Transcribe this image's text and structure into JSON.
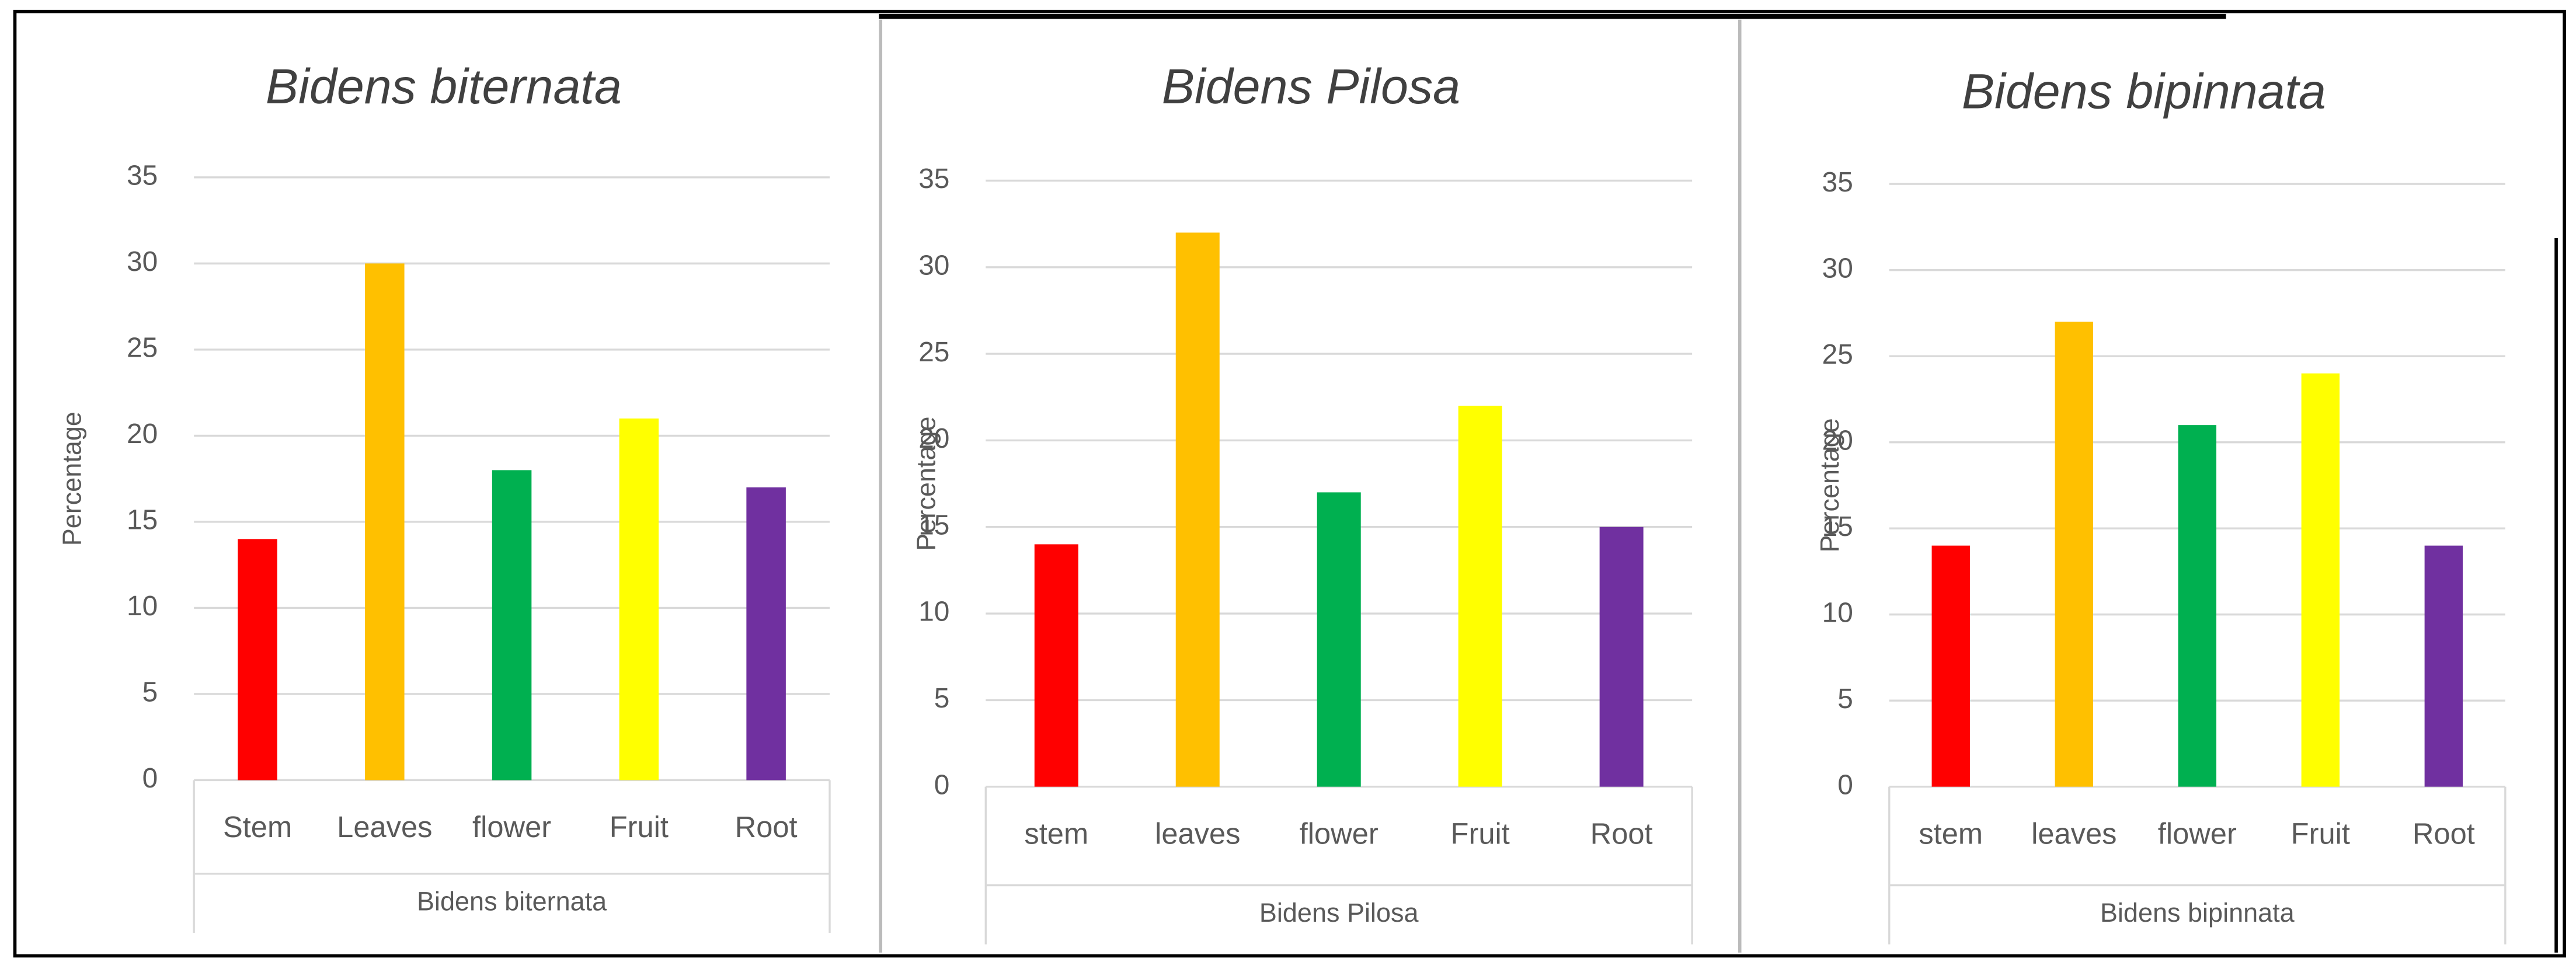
{
  "chart_data": [
    {
      "type": "bar",
      "title": "Bidens biternata",
      "xlabel": "Bidens biternata",
      "ylabel": "Percentage",
      "categories": [
        "Stem",
        "Leaves",
        "flower",
        "Fruit",
        "Root"
      ],
      "values": [
        14,
        30,
        18,
        21,
        17
      ],
      "colors": [
        "#ff0000",
        "#ffc000",
        "#00b050",
        "#ffff00",
        "#7030a0"
      ],
      "ylim": [
        0,
        35
      ],
      "yticks": [
        0,
        5,
        10,
        15,
        20,
        25,
        30,
        35
      ],
      "grid": true
    },
    {
      "type": "bar",
      "title": "Bidens Pilosa",
      "xlabel": "Bidens Pilosa",
      "ylabel": "Percentage",
      "categories": [
        "stem",
        "leaves",
        "flower",
        "Fruit",
        "Root"
      ],
      "values": [
        14,
        32,
        17,
        22,
        15
      ],
      "colors": [
        "#ff0000",
        "#ffc000",
        "#00b050",
        "#ffff00",
        "#7030a0"
      ],
      "ylim": [
        0,
        35
      ],
      "yticks": [
        0,
        5,
        10,
        15,
        20,
        25,
        30,
        35
      ],
      "grid": true
    },
    {
      "type": "bar",
      "title": "Bidens bipinnata",
      "xlabel": "Bidens bipinnata",
      "ylabel": "Percentage",
      "categories": [
        "stem",
        "leaves",
        "flower",
        "Fruit",
        "Root"
      ],
      "values": [
        14,
        27,
        21,
        24,
        14
      ],
      "colors": [
        "#ff0000",
        "#ffc000",
        "#00b050",
        "#ffff00",
        "#7030a0"
      ],
      "ylim": [
        0,
        35
      ],
      "yticks": [
        0,
        5,
        10,
        15,
        20,
        25,
        30,
        35
      ],
      "grid": true
    }
  ]
}
